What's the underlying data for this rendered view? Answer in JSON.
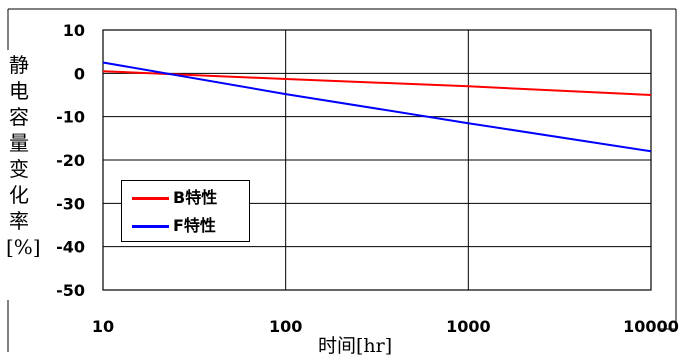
{
  "chart_data": {
    "type": "line",
    "title": "",
    "xlabel": "时间[hr]",
    "ylabel": "静电容量变化率[%]",
    "xscale": "log",
    "xlim": [
      10,
      10000
    ],
    "ylim": [
      -50,
      10
    ],
    "x_ticks": [
      10,
      100,
      1000,
      10000
    ],
    "x_tick_labels": [
      "10",
      "100",
      "1000",
      "10000"
    ],
    "y_ticks": [
      10,
      0,
      -10,
      -20,
      -30,
      -40,
      -50
    ],
    "y_tick_labels": [
      "10",
      "0",
      "-10",
      "-20",
      "-30",
      "-40",
      "-50"
    ],
    "grid": true,
    "legend_position": "lower-left",
    "series": [
      {
        "name": "B特性",
        "color": "#ff0000",
        "x": [
          10,
          100,
          1000,
          10000
        ],
        "y": [
          0.5,
          -1.3,
          -3.0,
          -5.0
        ]
      },
      {
        "name": "F特性",
        "color": "#0000ff",
        "x": [
          10,
          100,
          1000,
          10000
        ],
        "y": [
          2.5,
          -4.8,
          -11.5,
          -18.0
        ]
      }
    ]
  }
}
